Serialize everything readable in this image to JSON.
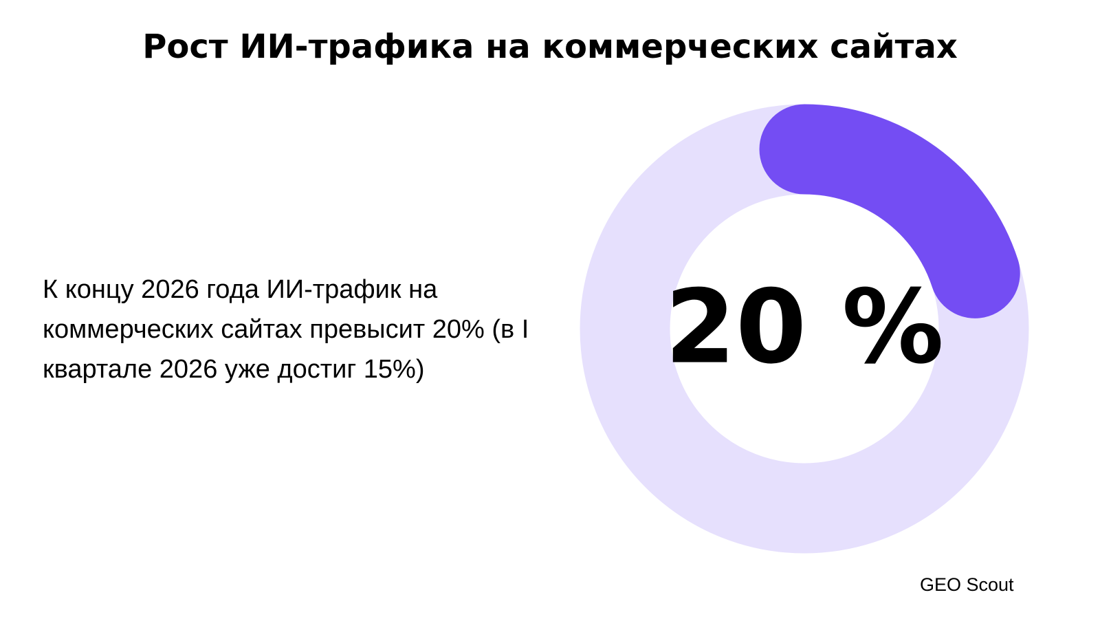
{
  "chart_data": {
    "type": "donut",
    "title": "Рост ИИ-трафика на коммерческих сайтах",
    "annotation": "К концу 2026 года ИИ-трафик на коммерческих сайтах превысит 20% (в I квартале 2026 уже достиг 15%)",
    "values": [
      20
    ],
    "value_labels": [
      "20 %"
    ],
    "ylim": [
      0,
      100
    ],
    "color": "#744df3",
    "track_color": "#e6e0fd",
    "source": "GEO Scout"
  }
}
